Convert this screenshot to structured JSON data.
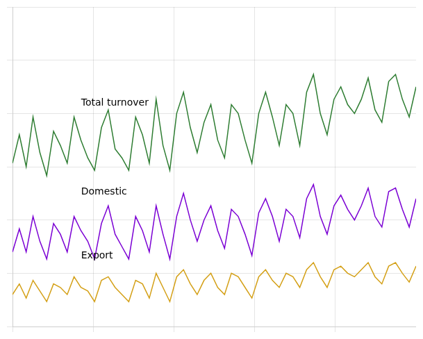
{
  "chart_data": {
    "type": "line",
    "series": [
      {
        "color": "#2e7d32",
        "values": [
          112,
          128,
          110,
          138,
          118,
          105,
          130,
          122,
          112,
          138,
          125,
          115,
          108,
          132,
          142,
          120,
          115,
          108,
          138,
          128,
          112,
          148,
          122,
          108,
          140,
          152,
          132,
          118,
          135,
          145,
          125,
          115,
          145,
          140,
          125,
          112,
          140,
          152,
          138,
          122,
          145,
          140,
          122,
          152,
          162,
          140,
          128,
          148,
          155,
          145,
          140,
          148,
          160,
          142,
          135,
          158,
          162,
          148,
          138,
          155
        ]
      },
      {
        "color": "#7b00d4",
        "values": [
          62,
          75,
          62,
          82,
          68,
          58,
          78,
          72,
          62,
          82,
          74,
          68,
          58,
          78,
          88,
          72,
          65,
          58,
          82,
          74,
          62,
          88,
          72,
          58,
          82,
          95,
          80,
          68,
          80,
          88,
          74,
          64,
          86,
          82,
          72,
          60,
          84,
          92,
          82,
          68,
          86,
          82,
          70,
          92,
          100,
          82,
          72,
          88,
          94,
          86,
          80,
          88,
          98,
          82,
          76,
          96,
          98,
          86,
          76,
          92
        ]
      },
      {
        "color": "#d4a017",
        "values": [
          38,
          44,
          36,
          46,
          40,
          34,
          44,
          42,
          38,
          48,
          42,
          40,
          34,
          46,
          48,
          42,
          38,
          34,
          46,
          44,
          36,
          50,
          42,
          34,
          48,
          52,
          44,
          38,
          46,
          50,
          42,
          38,
          50,
          48,
          42,
          36,
          48,
          52,
          46,
          42,
          50,
          48,
          42,
          52,
          56,
          48,
          42,
          52,
          54,
          50,
          48,
          52,
          56,
          48,
          44,
          54,
          56,
          50,
          45,
          54
        ]
      }
    ],
    "x": [
      0,
      1,
      2,
      3,
      4,
      5,
      6,
      7,
      8,
      9,
      10,
      11,
      12,
      13,
      14,
      15,
      16,
      17,
      18,
      19,
      20,
      21,
      22,
      23,
      24,
      25,
      26,
      27,
      28,
      29,
      30,
      31,
      32,
      33,
      34,
      35,
      36,
      37,
      38,
      39,
      40,
      41,
      42,
      43,
      44,
      45,
      46,
      47,
      48,
      49,
      50,
      51,
      52,
      53,
      54,
      55,
      56,
      57,
      58,
      59
    ],
    "annotations": [
      {
        "text": "Total turnover",
        "x": 10.03,
        "y": 146
      },
      {
        "text": "Domestic",
        "x": 10.03,
        "y": 95.6
      },
      {
        "text": "Export",
        "x": 10.03,
        "y": 59.6
      }
    ],
    "xlim": [
      0,
      59
    ],
    "xticks": [
      0,
      11.8,
      23.6,
      35.4,
      47.2,
      59
    ],
    "ylim": [
      20,
      200
    ],
    "yticks": [
      20,
      50,
      80,
      110,
      140,
      170,
      200
    ],
    "grid": true,
    "tick_labels": false
  }
}
